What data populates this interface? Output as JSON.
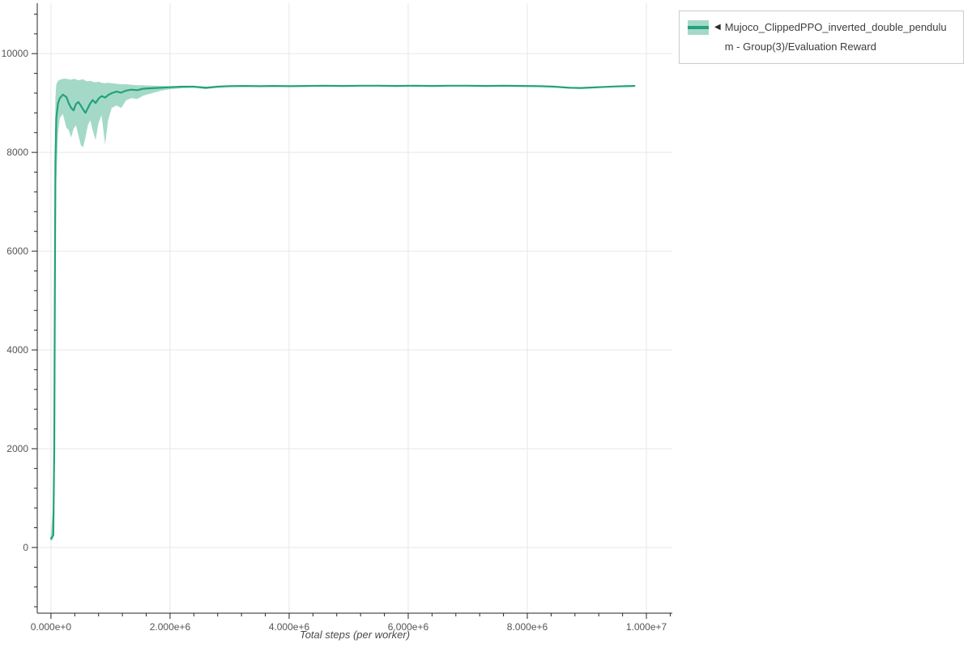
{
  "window": {
    "background": "#ffffff"
  },
  "legend": {
    "marker": "◀"
  },
  "chart_data": {
    "type": "line",
    "title": "",
    "xlabel": "Total steps (per worker)",
    "ylabel": "",
    "grid": true,
    "legend_position": "top-right",
    "xlim": [
      -230000,
      10435000
    ],
    "ylim": [
      -1330,
      11020
    ],
    "x_axis": {
      "major_ticks": [
        0,
        2000000,
        4000000,
        6000000,
        8000000,
        10000000
      ],
      "labels": [
        "0.000e+0",
        "2.000e+6",
        "4.000e+6",
        "6.000e+6",
        "8.000e+6",
        "1.000e+7"
      ],
      "minor_step": 400000
    },
    "y_axis": {
      "major_ticks": [
        0,
        2000,
        4000,
        6000,
        8000,
        10000
      ],
      "labels": [
        "0",
        "2000",
        "4000",
        "6000",
        "8000",
        "10000"
      ],
      "minor_step": 400
    },
    "colors": {
      "line": "#22a27b",
      "band": "rgba(37,165,125,0.42)",
      "grid": "#e7e7e7",
      "axis": "#262626",
      "tick_label": "#555555"
    },
    "series": [
      {
        "name": "Mujoco_ClippedPPO_inverted_double_pendulum - Group(3)/Evaluation Reward",
        "x": [
          0,
          40000,
          55000,
          65000,
          75000,
          90000,
          120000,
          150000,
          200000,
          260000,
          300000,
          340000,
          380000,
          420000,
          460000,
          500000,
          540000,
          580000,
          620000,
          660000,
          700000,
          750000,
          800000,
          850000,
          910000,
          960000,
          1020000,
          1100000,
          1180000,
          1260000,
          1350000,
          1450000,
          1550000,
          1700000,
          1850000,
          2000000,
          2200000,
          2400000,
          2600000,
          2800000,
          3000000,
          3250000,
          3500000,
          3750000,
          4000000,
          4300000,
          4600000,
          4900000,
          5200000,
          5500000,
          5800000,
          6100000,
          6400000,
          6700000,
          7000000,
          7300000,
          7600000,
          7900000,
          8200000,
          8450000,
          8700000,
          8900000,
          9100000,
          9300000,
          9500000,
          9650000,
          9800000
        ],
        "mean": [
          180,
          250,
          2000,
          5000,
          7800,
          8700,
          9000,
          9100,
          9170,
          9120,
          8990,
          8900,
          8850,
          8980,
          9020,
          8950,
          8870,
          8800,
          8900,
          8990,
          9060,
          9000,
          9090,
          9140,
          9110,
          9160,
          9200,
          9230,
          9210,
          9250,
          9270,
          9260,
          9290,
          9300,
          9310,
          9320,
          9330,
          9330,
          9310,
          9330,
          9340,
          9345,
          9340,
          9345,
          9340,
          9345,
          9350,
          9345,
          9350,
          9350,
          9345,
          9350,
          9345,
          9350,
          9350,
          9345,
          9350,
          9345,
          9340,
          9330,
          9310,
          9305,
          9315,
          9325,
          9335,
          9340,
          9345
        ],
        "upper": [
          260,
          900,
          4500,
          7500,
          9100,
          9380,
          9450,
          9470,
          9490,
          9490,
          9480,
          9470,
          9490,
          9480,
          9460,
          9470,
          9480,
          9450,
          9440,
          9450,
          9430,
          9420,
          9430,
          9410,
          9400,
          9410,
          9400,
          9390,
          9380,
          9380,
          9370,
          9360,
          9360,
          9350,
          9345,
          9340,
          9345,
          9340,
          9330,
          9340,
          9345,
          9350,
          9345,
          9350,
          9345,
          9350,
          9355,
          9350,
          9355,
          9355,
          9350,
          9355,
          9350,
          9355,
          9355,
          9350,
          9355,
          9350,
          9345,
          9340,
          9325,
          9320,
          9325,
          9330,
          9340,
          9345,
          9348
        ],
        "lower": [
          120,
          180,
          600,
          2500,
          5500,
          7400,
          8400,
          8700,
          8780,
          8500,
          8450,
          8300,
          8480,
          8550,
          8350,
          8150,
          8100,
          8300,
          8550,
          8650,
          8450,
          8250,
          8600,
          8750,
          8160,
          8650,
          8900,
          8950,
          8900,
          9050,
          9100,
          9080,
          9150,
          9200,
          9250,
          9280,
          9300,
          9310,
          9280,
          9310,
          9330,
          9338,
          9332,
          9340,
          9333,
          9340,
          9344,
          9340,
          9345,
          9344,
          9338,
          9344,
          9338,
          9344,
          9345,
          9338,
          9344,
          9338,
          9332,
          9318,
          9290,
          9285,
          9300,
          9315,
          9328,
          9335,
          9342
        ]
      }
    ]
  }
}
